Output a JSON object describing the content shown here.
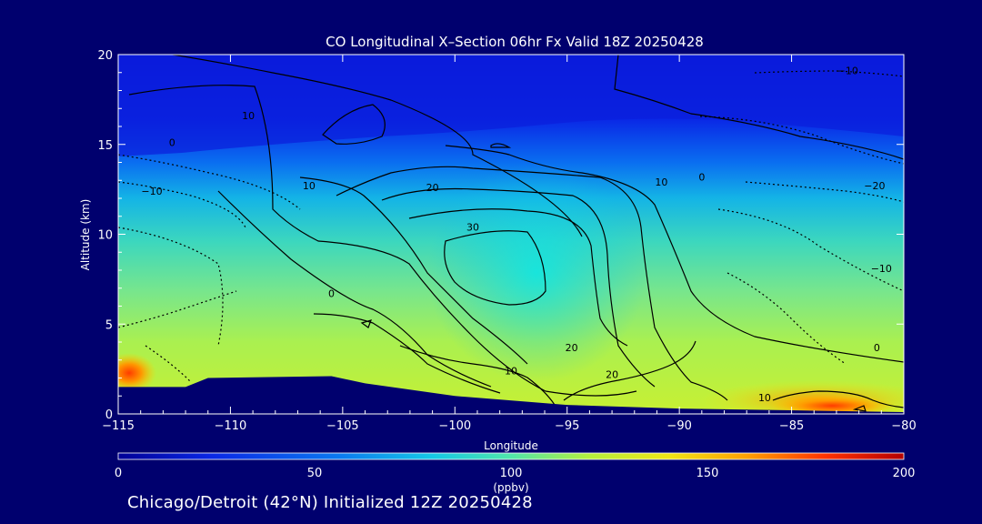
{
  "chart_data": {
    "type": "heatmap",
    "title": "CO Longitudinal X–Section 06hr  Fx Valid 18Z 20250428",
    "xlabel": "Longitude",
    "ylabel": "Altitude (km)",
    "xlim": [
      -115,
      -80
    ],
    "ylim": [
      0,
      20
    ],
    "xticks": [
      -115,
      -110,
      -105,
      -100,
      -95,
      -90,
      -85,
      -80
    ],
    "yticks": [
      0,
      5,
      10,
      15,
      20
    ],
    "grid": false,
    "colorbar": {
      "min": 0,
      "max": 200,
      "ticks": [
        0,
        50,
        100,
        150,
        200
      ],
      "unit": "(ppbv)",
      "colors": [
        "#0000c8",
        "#0a28e6",
        "#0a78f0",
        "#14c8e6",
        "#46e6b4",
        "#a0f050",
        "#e6f014",
        "#ffa500",
        "#ff3c00",
        "#b40000"
      ]
    },
    "contour_labels": [
      "10",
      "0",
      "-10",
      "-20",
      "20",
      "30"
    ],
    "terrain_top_km": [
      {
        "lon": -115,
        "alt": 1.5
      },
      {
        "lon": -112,
        "alt": 1.5
      },
      {
        "lon": -111,
        "alt": 2.0
      },
      {
        "lon": -105.5,
        "alt": 2.1
      },
      {
        "lon": -104,
        "alt": 1.7
      },
      {
        "lon": -100,
        "alt": 1.0
      },
      {
        "lon": -95,
        "alt": 0.5
      },
      {
        "lon": -90,
        "alt": 0.3
      },
      {
        "lon": -85,
        "alt": 0.2
      },
      {
        "lon": -80,
        "alt": 0.1
      }
    ],
    "field_summary": [
      {
        "alt": 0.5,
        "lon_range": [
          -85,
          -80
        ],
        "ppbv": 160
      },
      {
        "alt": 2.0,
        "lon_range": [
          -115,
          -113
        ],
        "ppbv": 140
      },
      {
        "alt": 3.0,
        "lon_range": [
          -110,
          -100
        ],
        "ppbv": 120
      },
      {
        "alt": 9.0,
        "lon_range": [
          -100,
          -92
        ],
        "ppbv": 90
      },
      {
        "alt": 15.0,
        "lon_range": [
          -115,
          -80
        ],
        "ppbv": 45
      },
      {
        "alt": 19.0,
        "lon_range": [
          -115,
          -80
        ],
        "ppbv": 25
      }
    ]
  },
  "footer": "Chicago/Detroit (42°N) Initialized 12Z 20250428"
}
